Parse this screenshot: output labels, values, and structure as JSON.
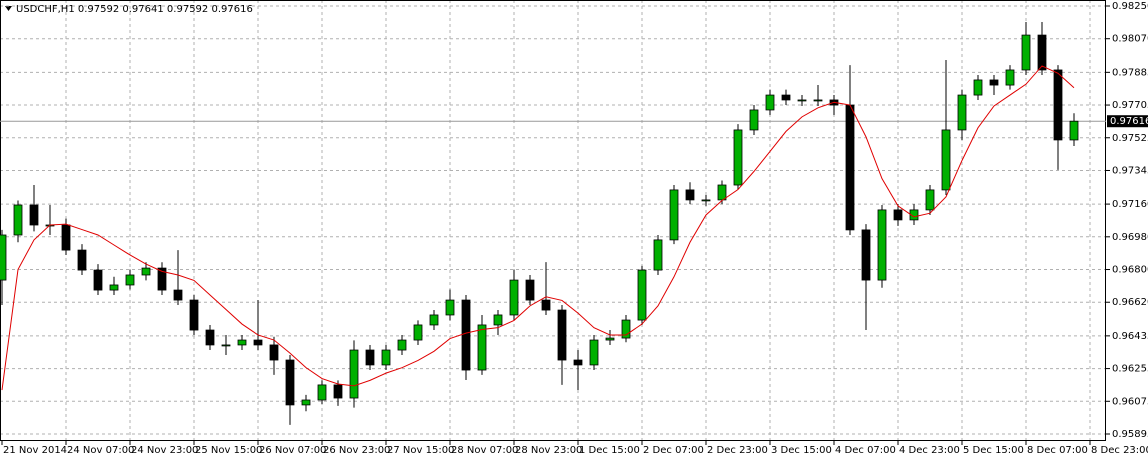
{
  "chart_data": {
    "type": "candlestick",
    "title": "USDCHF,H1  0.97592 0.97641 0.97592 0.97616",
    "x": [
      0,
      4,
      8,
      12,
      16,
      20,
      24,
      28,
      32,
      36,
      40,
      44,
      48,
      52,
      56,
      60,
      64,
      68,
      72,
      76,
      80,
      84,
      88,
      92,
      96,
      100,
      104,
      108,
      112,
      116,
      120,
      124,
      128,
      132,
      136,
      140,
      144,
      148,
      152,
      156,
      160,
      164,
      168,
      172,
      176,
      180,
      184,
      188,
      192,
      196,
      200,
      204,
      208,
      212,
      216,
      220,
      224,
      228,
      232,
      236,
      240,
      244,
      248,
      252,
      256,
      260,
      264,
      268
    ],
    "open": [
      0.96742,
      0.9699,
      0.97155,
      0.97045,
      0.97045,
      0.96907,
      0.96797,
      0.96687,
      0.96715,
      0.9677,
      0.96808,
      0.96687,
      0.96632,
      0.96467,
      0.96385,
      0.96385,
      0.96412,
      0.96385,
      0.96302,
      0.96055,
      0.96082,
      0.96165,
      0.96093,
      0.96357,
      0.96275,
      0.96357,
      0.96412,
      0.96495,
      0.9655,
      0.96632,
      0.96247,
      0.96495,
      0.9655,
      0.96742,
      0.96632,
      0.96577,
      0.96302,
      0.96275,
      0.96412,
      0.96423,
      0.96522,
      0.96797,
      0.96963,
      0.97238,
      0.97183,
      0.97183,
      0.97265,
      0.97568,
      0.97678,
      0.9776,
      0.97733,
      0.97733,
      0.97733,
      0.97705,
      0.97018,
      0.96742,
      0.97128,
      0.97073,
      0.97128,
      0.97238,
      0.97568,
      0.9776,
      0.97843,
      0.97815,
      0.97898,
      0.9809,
      0.97898,
      0.97513
    ],
    "high": [
      0.97018,
      0.9718,
      0.97265,
      0.97155,
      0.9708,
      0.9694,
      0.9683,
      0.9676,
      0.968,
      0.9684,
      0.9684,
      0.96907,
      0.9666,
      0.96495,
      0.9644,
      0.9644,
      0.96632,
      0.9643,
      0.9633,
      0.9611,
      0.9619,
      0.9619,
      0.9641,
      0.96385,
      0.96385,
      0.9644,
      0.9652,
      0.96577,
      0.9669,
      0.9666,
      0.9655,
      0.96577,
      0.968,
      0.9677,
      0.96841,
      0.96605,
      0.96357,
      0.9644,
      0.96467,
      0.9655,
      0.9682,
      0.9699,
      0.97265,
      0.9728,
      0.9721,
      0.9729,
      0.976,
      0.97705,
      0.9779,
      0.9779,
      0.9776,
      0.97815,
      0.9776,
      0.97925,
      0.9705,
      0.97155,
      0.9716,
      0.9716,
      0.97265,
      0.97953,
      0.9779,
      0.9787,
      0.9787,
      0.97925,
      0.98162,
      0.98162,
      0.97925,
      0.9766
    ],
    "low": [
      0.96605,
      0.9695,
      0.9701,
      0.9699,
      0.9688,
      0.9677,
      0.9666,
      0.9666,
      0.9669,
      0.9674,
      0.9666,
      0.96605,
      0.9644,
      0.96357,
      0.9633,
      0.96357,
      0.96357,
      0.9622,
      0.95945,
      0.9602,
      0.9606,
      0.9605,
      0.9604,
      0.96247,
      0.96247,
      0.9633,
      0.96385,
      0.96467,
      0.9652,
      0.96192,
      0.9622,
      0.9644,
      0.9652,
      0.96605,
      0.9655,
      0.96165,
      0.96137,
      0.96247,
      0.96385,
      0.964,
      0.96495,
      0.9677,
      0.9694,
      0.9716,
      0.9715,
      0.9716,
      0.9724,
      0.9754,
      0.9765,
      0.97705,
      0.977,
      0.977,
      0.9765,
      0.9699,
      0.96467,
      0.967,
      0.9704,
      0.97045,
      0.971,
      0.9721,
      0.97513,
      0.97733,
      0.9776,
      0.9779,
      0.9787,
      0.9787,
      0.97348,
      0.9748
    ],
    "close": [
      0.9699,
      0.97155,
      0.97045,
      0.97045,
      0.96907,
      0.96797,
      0.96687,
      0.96715,
      0.9677,
      0.96808,
      0.96687,
      0.96632,
      0.96467,
      0.96385,
      0.96385,
      0.96412,
      0.96385,
      0.96302,
      0.96055,
      0.96082,
      0.96165,
      0.96093,
      0.96357,
      0.96275,
      0.96357,
      0.96412,
      0.96495,
      0.9655,
      0.96632,
      0.96247,
      0.96495,
      0.9655,
      0.96742,
      0.96632,
      0.96577,
      0.96302,
      0.96275,
      0.96412,
      0.96423,
      0.96522,
      0.96797,
      0.96963,
      0.97238,
      0.97183,
      0.97183,
      0.97265,
      0.97568,
      0.97678,
      0.9776,
      0.97733,
      0.97733,
      0.97733,
      0.97705,
      0.97018,
      0.96742,
      0.97128,
      0.97073,
      0.97128,
      0.97238,
      0.97568,
      0.9776,
      0.97843,
      0.97815,
      0.97898,
      0.9809,
      0.97898,
      0.97513,
      0.97616
    ],
    "ma": [
      0.96137,
      0.968,
      0.96963,
      0.97045,
      0.9705,
      0.9702,
      0.9699,
      0.96935,
      0.9688,
      0.9683,
      0.9679,
      0.9677,
      0.9674,
      0.9666,
      0.9658,
      0.965,
      0.9644,
      0.96412,
      0.9634,
      0.9626,
      0.962,
      0.9617,
      0.9616,
      0.9619,
      0.9623,
      0.9626,
      0.963,
      0.9635,
      0.9642,
      0.9645,
      0.9647,
      0.9648,
      0.9652,
      0.966,
      0.9665,
      0.9663,
      0.9656,
      0.9648,
      0.9644,
      0.9644,
      0.965,
      0.966,
      0.9676,
      0.9695,
      0.971,
      0.9718,
      0.9724,
      0.9734,
      0.9745,
      0.9756,
      0.9764,
      0.9769,
      0.9772,
      0.97705,
      0.9753,
      0.973,
      0.9715,
      0.9709,
      0.9711,
      0.972,
      0.974,
      0.9758,
      0.977,
      0.9776,
      0.9782,
      0.9792,
      0.9788,
      0.978
    ],
    "bull_color": "#00b000",
    "bear_color": "#000000",
    "ma_color": "#e00000",
    "current_price": 0.97616,
    "xlim": [
      -0.5,
      276
    ],
    "xticks": [
      {
        "value": 0,
        "label": "21 Nov 2014"
      },
      {
        "value": 16,
        "label": "24 Nov 07:00"
      },
      {
        "value": 32,
        "label": "24 Nov 23:00"
      },
      {
        "value": 48,
        "label": "25 Nov 15:00"
      },
      {
        "value": 64,
        "label": "26 Nov 07:00"
      },
      {
        "value": 80,
        "label": "26 Nov 23:00"
      },
      {
        "value": 96,
        "label": "27 Nov 15:00"
      },
      {
        "value": 112,
        "label": "28 Nov 07:00"
      },
      {
        "value": 128,
        "label": "28 Nov 23:00"
      },
      {
        "value": 144,
        "label": "1 Dec 15:00"
      },
      {
        "value": 160,
        "label": "2 Dec 07:00"
      },
      {
        "value": 176,
        "label": "2 Dec 23:00"
      },
      {
        "value": 192,
        "label": "3 Dec 15:00"
      },
      {
        "value": 208,
        "label": "4 Dec 07:00"
      },
      {
        "value": 224,
        "label": "4 Dec 23:00"
      },
      {
        "value": 240,
        "label": "5 Dec 15:00"
      },
      {
        "value": 256,
        "label": "8 Dec 07:00"
      },
      {
        "value": 272,
        "label": "8 Dec 23:00"
      }
    ],
    "ylim": [
      0.95862,
      0.98283
    ],
    "yticks": [
      {
        "value": 0.9825,
        "label": "0.98250"
      },
      {
        "value": 0.9807,
        "label": "0.98070"
      },
      0.97885,
      {
        "value": 0.97705,
        "label": "0.97705"
      },
      {
        "value": 0.97525,
        "label": "0.97525"
      },
      {
        "value": 0.97345,
        "label": "0.97345"
      },
      {
        "value": 0.9716,
        "label": "0.97160"
      },
      {
        "value": 0.9698,
        "label": "0.96980"
      },
      {
        "value": 0.968,
        "label": "0.96800"
      },
      {
        "value": 0.9662,
        "label": "0.96620"
      },
      0.96435,
      0.96255,
      0.96075,
      0.95895
    ],
    "grid": true
  }
}
